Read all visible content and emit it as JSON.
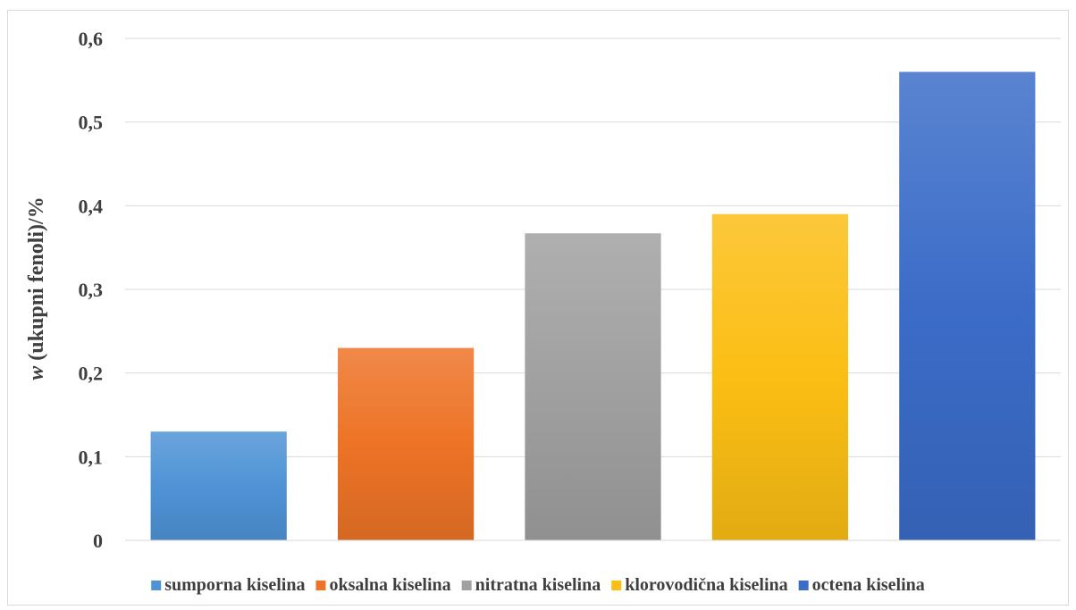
{
  "chart_data": {
    "type": "bar",
    "categories": [
      "sumporna kiselina",
      "oksalna kiselina",
      "nitratna kiselina",
      "klorovodična kiselina",
      "octena kiselina"
    ],
    "values": [
      0.13,
      0.23,
      0.367,
      0.39,
      0.56
    ],
    "colors": [
      "#4f93d6",
      "#ed7326",
      "#a0a0a0",
      "#fbbe14",
      "#3b6cc8"
    ],
    "ylabel_italic": "w",
    "ylabel_rest": " (ukupni fenoli)/%",
    "ylim": [
      0,
      0.6
    ],
    "yticks": [
      0,
      0.1,
      0.2,
      0.3,
      0.4,
      0.5,
      0.6
    ],
    "ytick_labels": [
      "0",
      "0,1",
      "0,2",
      "0,3",
      "0,4",
      "0,5",
      "0,6"
    ],
    "grid": true,
    "legend_position": "bottom"
  }
}
